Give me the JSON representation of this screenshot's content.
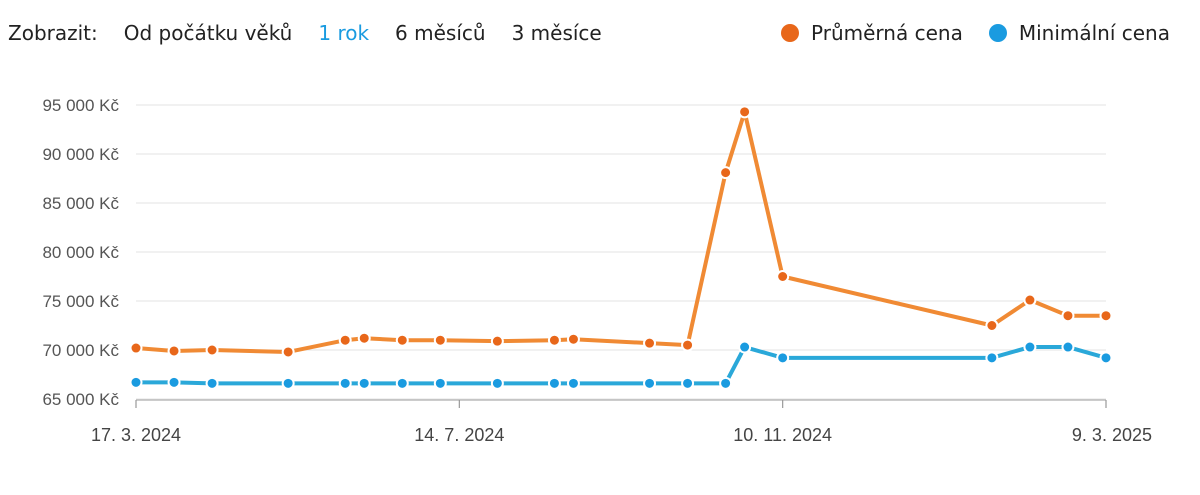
{
  "controls": {
    "label": "Zobrazit:",
    "ranges": [
      {
        "label": "Od počátku věků",
        "active": false
      },
      {
        "label": "1 rok",
        "active": true
      },
      {
        "label": "6 měsíců",
        "active": false
      },
      {
        "label": "3 měsíce",
        "active": false
      }
    ]
  },
  "legend": [
    {
      "label": "Průměrná cena",
      "color": "#e8671a"
    },
    {
      "label": "Minimální cena",
      "color": "#1a9be0"
    }
  ],
  "chart_data": {
    "type": "line",
    "title": "",
    "xlabel": "",
    "ylabel": "",
    "x_ticks": [
      "17. 3. 2024",
      "14. 7. 2024",
      "10. 11. 2024",
      "9. 3. 2025"
    ],
    "y_ticks": [
      "65 000 Kč",
      "70 000 Kč",
      "75 000 Kč",
      "80 000 Kč",
      "85 000 Kč",
      "90 000 Kč",
      "95 000 Kč"
    ],
    "xlim": [
      "2024-03-17",
      "2025-03-09"
    ],
    "ylim": [
      65000,
      95000
    ],
    "grid": "horizontal",
    "series": [
      {
        "name": "Průměrná cena",
        "color": "#f08a34",
        "marker_color": "#e8671a",
        "points": [
          [
            "2024-03-17",
            70200
          ],
          [
            "2024-03-31",
            69900
          ],
          [
            "2024-04-14",
            70000
          ],
          [
            "2024-05-12",
            69800
          ],
          [
            "2024-06-02",
            71000
          ],
          [
            "2024-06-09",
            71200
          ],
          [
            "2024-06-23",
            71000
          ],
          [
            "2024-07-07",
            71000
          ],
          [
            "2024-07-28",
            70900
          ],
          [
            "2024-08-18",
            71000
          ],
          [
            "2024-08-25",
            71100
          ],
          [
            "2024-09-22",
            70700
          ],
          [
            "2024-10-06",
            70500
          ],
          [
            "2024-10-20",
            88100
          ],
          [
            "2024-10-27",
            94300
          ],
          [
            "2024-11-10",
            77500
          ],
          [
            "2025-01-26",
            72500
          ],
          [
            "2025-02-09",
            75100
          ],
          [
            "2025-02-23",
            73500
          ],
          [
            "2025-03-09",
            73500
          ]
        ]
      },
      {
        "name": "Minimální cena",
        "color": "#2aa8d9",
        "marker_color": "#1a9be0",
        "points": [
          [
            "2024-03-17",
            66700
          ],
          [
            "2024-03-31",
            66700
          ],
          [
            "2024-04-14",
            66600
          ],
          [
            "2024-05-12",
            66600
          ],
          [
            "2024-06-02",
            66600
          ],
          [
            "2024-06-09",
            66600
          ],
          [
            "2024-06-23",
            66600
          ],
          [
            "2024-07-07",
            66600
          ],
          [
            "2024-07-28",
            66600
          ],
          [
            "2024-08-18",
            66600
          ],
          [
            "2024-08-25",
            66600
          ],
          [
            "2024-09-22",
            66600
          ],
          [
            "2024-10-06",
            66600
          ],
          [
            "2024-10-20",
            66600
          ],
          [
            "2024-10-27",
            70300
          ],
          [
            "2024-11-10",
            69200
          ],
          [
            "2025-01-26",
            69200
          ],
          [
            "2025-02-09",
            70300
          ],
          [
            "2025-02-23",
            70300
          ],
          [
            "2025-03-09",
            69200
          ]
        ]
      }
    ]
  }
}
